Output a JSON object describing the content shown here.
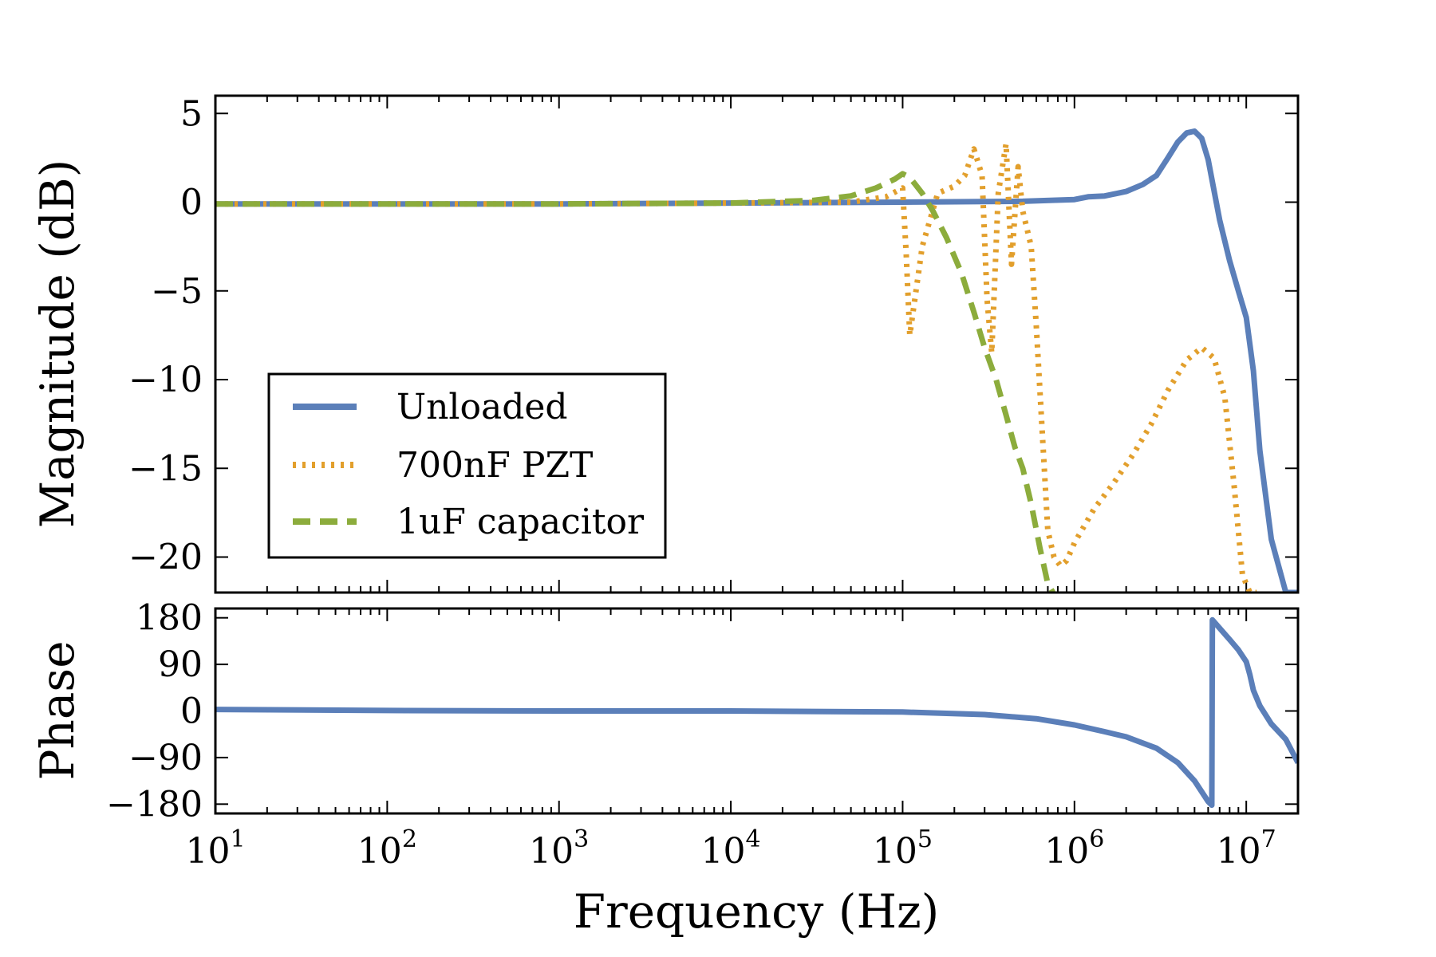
{
  "chart_data": [
    {
      "id": "magnitude",
      "type": "line",
      "title": "",
      "xlabel": "",
      "ylabel": "Magnitude (dB)",
      "xscale": "log",
      "xlim": [
        10,
        20000000
      ],
      "ylim": [
        -22,
        6
      ],
      "yticks": [
        {
          "value": 5,
          "label": "5"
        },
        {
          "value": 0,
          "label": "0"
        },
        {
          "value": -5,
          "label": "−5"
        },
        {
          "value": -10,
          "label": "−10"
        },
        {
          "value": -15,
          "label": "−15"
        },
        {
          "value": -20,
          "label": "−20"
        }
      ],
      "legend": {
        "position": "lower-left",
        "entries": [
          "Unloaded",
          "700nF PZT",
          "1uF capacitor"
        ]
      },
      "series": [
        {
          "name": "Unloaded",
          "color": "#5b7fb9",
          "style": "solid",
          "x": [
            10,
            100,
            1000,
            10000,
            100000,
            500000,
            1000000,
            1200000,
            1500000,
            2000000,
            2500000,
            3000000,
            3500000,
            4000000,
            4500000,
            5000000,
            5500000,
            6000000,
            7000000,
            8000000,
            9000000,
            10000000,
            11000000,
            12000000,
            14000000,
            17000000,
            20000000
          ],
          "y": [
            -0.1,
            -0.1,
            -0.1,
            -0.05,
            0.0,
            0.05,
            0.15,
            0.3,
            0.35,
            0.6,
            1.0,
            1.5,
            2.5,
            3.4,
            3.9,
            4.0,
            3.6,
            2.4,
            -1.0,
            -3.3,
            -5.0,
            -6.5,
            -9.5,
            -14.0,
            -19.0,
            -22.0,
            -22.0
          ]
        },
        {
          "name": "700nF PZT",
          "color": "#e29f2c",
          "style": "dotted",
          "x": [
            10,
            100,
            1000,
            10000,
            50000,
            80000,
            100000,
            105000,
            110000,
            130000,
            160000,
            200000,
            230000,
            260000,
            290000,
            310000,
            330000,
            360000,
            400000,
            430000,
            470000,
            500000,
            560000,
            600000,
            650000,
            700000,
            760000,
            830000,
            900000,
            1000000,
            1300000,
            1700000,
            2200000,
            2800000,
            3500000,
            4500000,
            5500000,
            6500000,
            7500000,
            8500000,
            9500000,
            10500000,
            11500000
          ],
          "y": [
            -0.1,
            -0.1,
            -0.1,
            -0.05,
            0.0,
            0.3,
            0.8,
            -3.0,
            -7.5,
            -2.5,
            0.5,
            0.9,
            1.5,
            3.0,
            1.5,
            -5.5,
            -8.5,
            0.5,
            3.3,
            -3.5,
            2.0,
            -0.5,
            -2.5,
            -7.0,
            -13.0,
            -18.5,
            -20.0,
            -20.5,
            -20.2,
            -19.2,
            -17.3,
            -15.8,
            -14.2,
            -12.5,
            -10.6,
            -8.9,
            -8.2,
            -8.8,
            -11.0,
            -16.0,
            -21.0,
            -22.0,
            -22.0
          ]
        },
        {
          "name": "1uF capacitor",
          "color": "#8cac3c",
          "style": "dashed",
          "x": [
            10,
            100,
            1000,
            10000,
            30000,
            50000,
            70000,
            90000,
            100000,
            110000,
            130000,
            150000,
            180000,
            220000,
            260000,
            300000,
            350000,
            400000,
            450000,
            500000,
            560000,
            630000,
            700000,
            750000
          ],
          "y": [
            -0.1,
            -0.1,
            -0.1,
            -0.05,
            0.1,
            0.35,
            0.8,
            1.3,
            1.6,
            1.4,
            0.5,
            -0.5,
            -2.0,
            -4.0,
            -6.2,
            -8.2,
            -10.0,
            -12.0,
            -13.8,
            -15.0,
            -17.0,
            -19.5,
            -21.5,
            -22.0
          ]
        }
      ]
    },
    {
      "id": "phase",
      "type": "line",
      "title": "",
      "xlabel": "Frequency (Hz)",
      "ylabel": "Phase",
      "xscale": "log",
      "xlim": [
        10,
        20000000
      ],
      "ylim": [
        -198,
        198
      ],
      "xticks": [
        {
          "value": 10,
          "base": "10",
          "exp": "1"
        },
        {
          "value": 100,
          "base": "10",
          "exp": "2"
        },
        {
          "value": 1000,
          "base": "10",
          "exp": "3"
        },
        {
          "value": 10000,
          "base": "10",
          "exp": "4"
        },
        {
          "value": 100000,
          "base": "10",
          "exp": "5"
        },
        {
          "value": 1000000,
          "base": "10",
          "exp": "6"
        },
        {
          "value": 10000000,
          "base": "10",
          "exp": "7"
        }
      ],
      "yticks": [
        {
          "value": 180,
          "label": "180"
        },
        {
          "value": 90,
          "label": "90"
        },
        {
          "value": 0,
          "label": "0"
        },
        {
          "value": -90,
          "label": "−90"
        },
        {
          "value": -180,
          "label": "−180"
        }
      ],
      "series": [
        {
          "name": "Unloaded",
          "color": "#5b7fb9",
          "style": "solid",
          "x": [
            10,
            100,
            1000,
            10000,
            100000,
            300000,
            600000,
            1000000,
            1500000,
            2000000,
            3000000,
            4000000,
            5000000,
            6000000,
            6300000,
            6350000,
            7000000,
            8000000,
            9000000,
            10000000,
            10500000,
            11000000,
            12000000,
            14000000,
            17000000,
            20000000
          ],
          "y": [
            3,
            1,
            0,
            0,
            -2,
            -7,
            -15,
            -27,
            -40,
            -50,
            -72,
            -100,
            -135,
            -175,
            -182,
            176,
            160,
            138,
            118,
            95,
            70,
            40,
            10,
            -25,
            -55,
            -100
          ]
        }
      ]
    }
  ]
}
